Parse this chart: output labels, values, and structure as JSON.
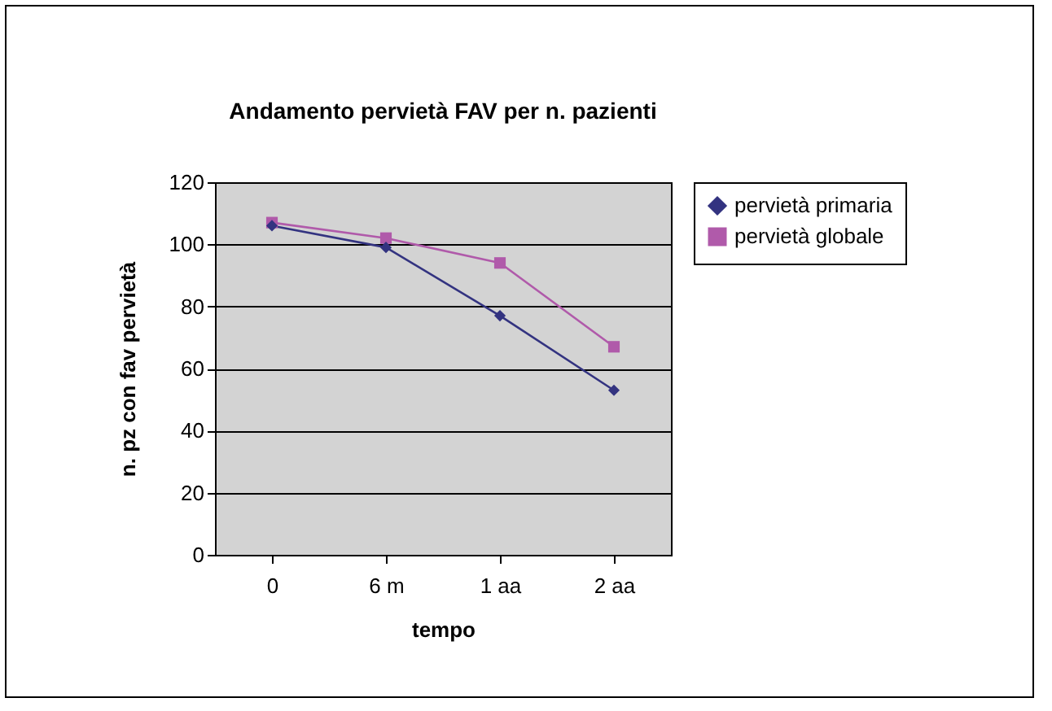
{
  "chart_data": {
    "type": "line",
    "title": "Andamento pervietà FAV per n. pazienti",
    "xlabel": "tempo",
    "ylabel": "n. pz con fav pervietà",
    "categories": [
      "0",
      "6 m",
      "1 aa",
      "2 aa"
    ],
    "ylim": [
      0,
      120
    ],
    "yticks": [
      0,
      20,
      40,
      60,
      80,
      100,
      120
    ],
    "grid": "y",
    "legend": "right",
    "series": [
      {
        "name": "pervietà primaria",
        "color": "#333380",
        "marker": "diamond",
        "values": [
          106,
          99,
          77,
          53
        ]
      },
      {
        "name": "pervietà globale",
        "color": "#b05aaa",
        "marker": "square",
        "values": [
          107,
          102,
          94,
          67
        ]
      }
    ]
  }
}
